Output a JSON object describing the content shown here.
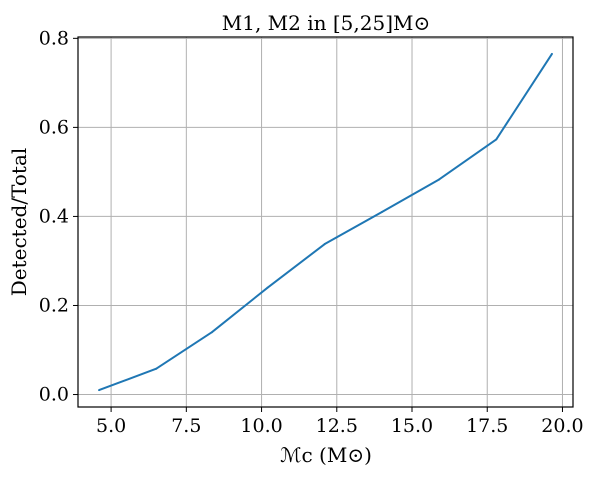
{
  "chart_data": {
    "type": "line",
    "title": "M1, M2 in [5,25]M⊙",
    "xlabel": "ℳc (M⊙)",
    "ylabel": "Detected/Total",
    "xlim": [
      3.9,
      20.35
    ],
    "ylim": [
      -0.028,
      0.803
    ],
    "xticks": [
      5.0,
      7.5,
      10.0,
      12.5,
      15.0,
      17.5,
      20.0
    ],
    "xtick_labels": [
      "5.0",
      "7.5",
      "10.0",
      "12.5",
      "15.0",
      "17.5",
      "20.0"
    ],
    "yticks": [
      0.0,
      0.2,
      0.4,
      0.6,
      0.8
    ],
    "ytick_labels": [
      "0.0",
      "0.2",
      "0.4",
      "0.6",
      "0.8"
    ],
    "grid": true,
    "series": [
      {
        "color": "#1f77b4",
        "x": [
          4.6,
          6.5,
          8.35,
          10.2,
          12.1,
          14.0,
          15.9,
          17.8,
          19.65
        ],
        "y": [
          0.01,
          0.058,
          0.14,
          0.24,
          0.338,
          0.41,
          0.483,
          0.573,
          0.765
        ]
      }
    ]
  }
}
